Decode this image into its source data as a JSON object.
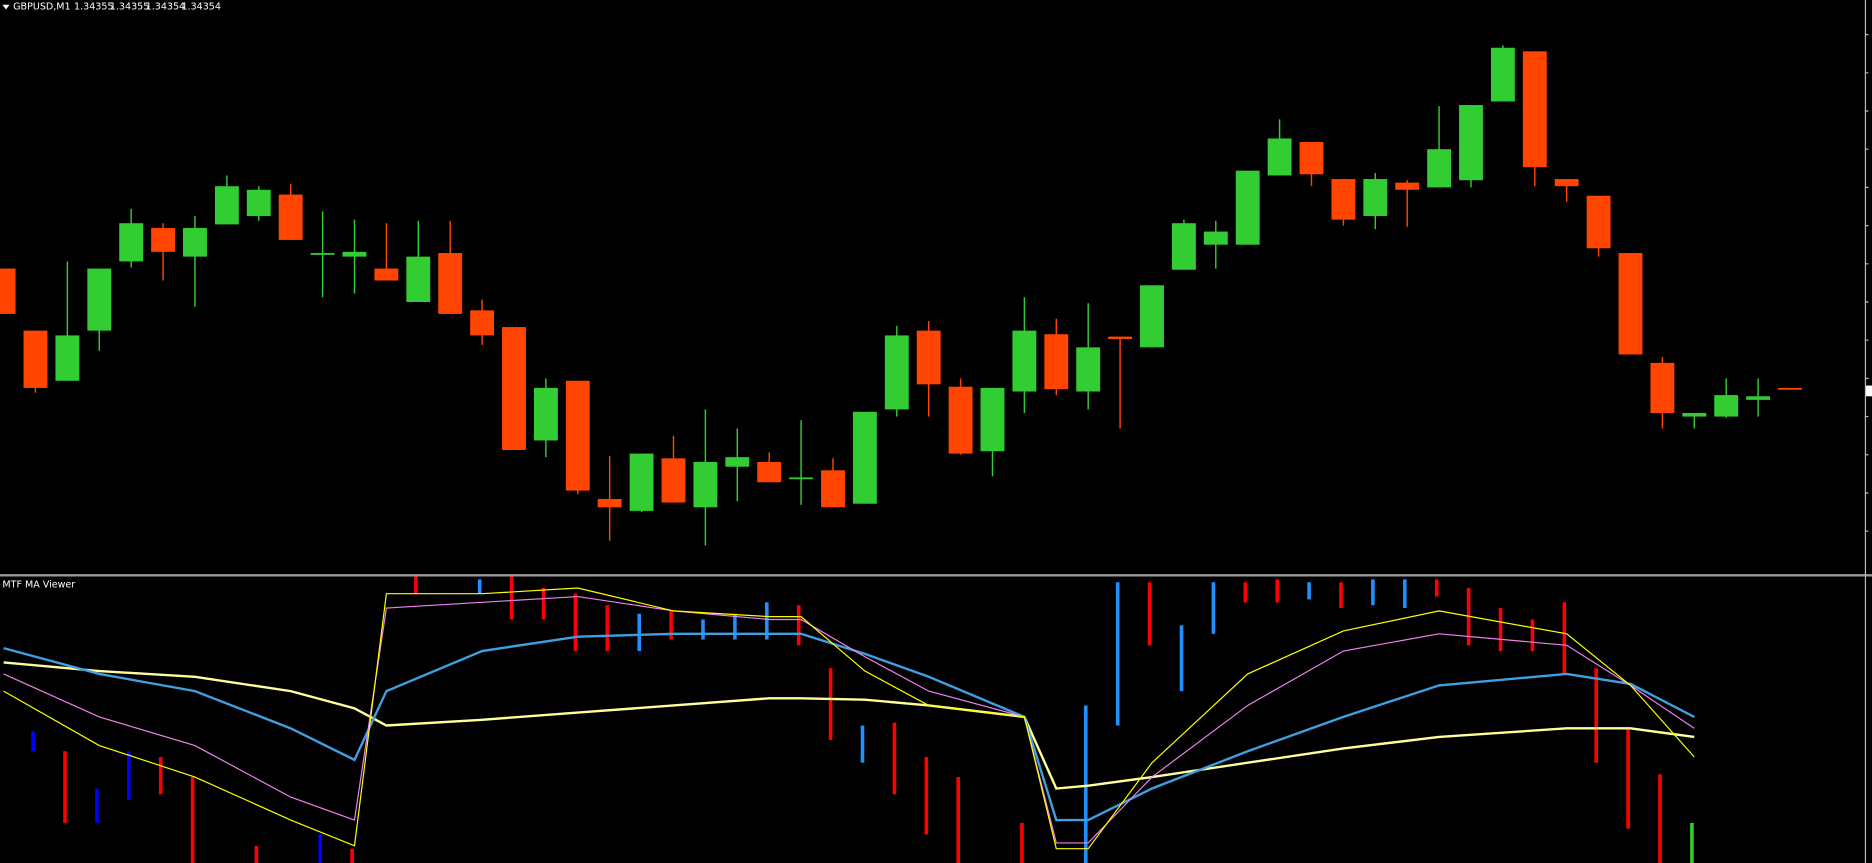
{
  "chart_data": [
    {
      "type": "candlestick",
      "title": "GBPUSD,M1",
      "ylim": [
        1.342,
        1.3468
      ],
      "up_color": "#32cd32",
      "down_color": "#ff4500",
      "open": [
        1.34455,
        1.34403,
        1.34361,
        1.34403,
        1.34461,
        1.34489,
        1.34465,
        1.34492,
        1.34499,
        1.34517,
        1.34468,
        1.34465,
        1.34455,
        1.34427,
        1.34468,
        1.3442,
        1.34406,
        1.34311,
        1.34361,
        1.34262,
        1.34252,
        1.34296,
        1.34255,
        1.34289,
        1.34293,
        1.3428,
        1.34286,
        1.34258,
        1.34337,
        1.34403,
        1.34356,
        1.34302,
        1.34352,
        1.344,
        1.34352,
        1.34398,
        1.34389,
        1.34454,
        1.34475,
        1.34475,
        1.34533,
        1.34561,
        1.3453,
        1.34499,
        1.34527,
        1.34523,
        1.34529,
        1.34595,
        1.34637,
        1.3453,
        1.34516,
        1.34468,
        1.34376,
        1.34331,
        1.34331,
        1.34345,
        1.34355
      ],
      "high": [
        1.34455,
        1.34403,
        1.34461,
        1.34455,
        1.34505,
        1.34493,
        1.34499,
        1.34533,
        1.34524,
        1.34526,
        1.34503,
        1.34496,
        1.34493,
        1.34495,
        1.34495,
        1.34429,
        1.34406,
        1.34363,
        1.34361,
        1.34298,
        1.343,
        1.34315,
        1.34337,
        1.34321,
        1.34301,
        1.34328,
        1.34296,
        1.34335,
        1.34407,
        1.34411,
        1.34363,
        1.34355,
        1.34431,
        1.34413,
        1.34426,
        1.34398,
        1.34441,
        1.34496,
        1.34495,
        1.34537,
        1.3458,
        1.34561,
        1.3453,
        1.34535,
        1.34529,
        1.34591,
        1.34592,
        1.34642,
        1.34637,
        1.3453,
        1.34516,
        1.34468,
        1.34381,
        1.34334,
        1.34363,
        1.34363,
        1.34355
      ],
      "low": [
        1.34417,
        1.34351,
        1.34361,
        1.34386,
        1.34456,
        1.34445,
        1.34423,
        1.34492,
        1.34495,
        1.34479,
        1.34431,
        1.34434,
        1.34445,
        1.34427,
        1.34417,
        1.34391,
        1.34303,
        1.34297,
        1.34266,
        1.34227,
        1.34251,
        1.34259,
        1.34223,
        1.3426,
        1.34276,
        1.34257,
        1.34255,
        1.34258,
        1.34331,
        1.34331,
        1.34299,
        1.34281,
        1.34334,
        1.34349,
        1.34337,
        1.34321,
        1.34389,
        1.34454,
        1.34455,
        1.34475,
        1.34533,
        1.34524,
        1.34491,
        1.34488,
        1.3449,
        1.34523,
        1.34523,
        1.34595,
        1.34524,
        1.34511,
        1.34465,
        1.34383,
        1.34321,
        1.34321,
        1.3433,
        1.34331,
        1.34354
      ],
      "close": [
        1.34417,
        1.34355,
        1.34399,
        1.34455,
        1.34493,
        1.34469,
        1.34489,
        1.34524,
        1.34521,
        1.34479,
        1.34468,
        1.34469,
        1.34445,
        1.34465,
        1.34417,
        1.34399,
        1.34303,
        1.34355,
        1.34269,
        1.34255,
        1.343,
        1.34259,
        1.34293,
        1.34297,
        1.34276,
        1.3428,
        1.34255,
        1.34335,
        1.34399,
        1.34358,
        1.343,
        1.34355,
        1.34403,
        1.34354,
        1.34389,
        1.34396,
        1.34441,
        1.34493,
        1.34486,
        1.34537,
        1.34564,
        1.34534,
        1.34496,
        1.3453,
        1.34521,
        1.34555,
        1.34592,
        1.3464,
        1.3454,
        1.34524,
        1.34472,
        1.34383,
        1.34334,
        1.34334,
        1.34349,
        1.34348,
        1.34354
      ]
    },
    {
      "type": "line",
      "title": "MTF MA Viewer",
      "ylim": [
        0,
        100
      ],
      "x": [
        0,
        3,
        6,
        9,
        11,
        12,
        15,
        18,
        21,
        24,
        25,
        27,
        29,
        32,
        33,
        34,
        36,
        39,
        42,
        45,
        49,
        51,
        53
      ],
      "series": [
        {
          "color": "#ffff99",
          "width": 2,
          "values": [
            70,
            67,
            65,
            60,
            54,
            48,
            50,
            52.5,
            55,
            57.5,
            57.5,
            57,
            55,
            51,
            26,
            27,
            30,
            35,
            40,
            44,
            47,
            47,
            44
          ]
        },
        {
          "color": "#3f9fe0",
          "width": 2,
          "values": [
            75,
            66,
            60,
            47,
            36,
            60,
            74,
            79,
            80,
            80,
            80,
            73,
            65,
            51,
            15,
            15,
            26,
            39,
            51,
            62,
            66,
            62.5,
            51
          ]
        },
        {
          "color": "#ee82ee",
          "width": 1,
          "values": [
            66,
            51,
            41,
            23,
            15,
            89,
            91,
            93,
            88,
            85,
            85,
            72,
            60,
            51,
            7,
            7,
            30,
            55,
            74,
            80,
            76,
            62,
            47
          ]
        },
        {
          "color": "#ffff00",
          "width": 1,
          "values": [
            60,
            41,
            30,
            15,
            6,
            94,
            94,
            96,
            88,
            86,
            86,
            67,
            55,
            51,
            5,
            5,
            35,
            66,
            81,
            88,
            80,
            62,
            37
          ]
        }
      ],
      "bars": {
        "x": [
          1,
          2,
          3,
          4,
          5,
          6,
          8,
          10,
          11,
          13,
          15,
          16,
          17,
          18,
          19,
          20,
          21,
          22,
          23,
          24,
          25,
          26,
          27,
          28,
          29,
          30,
          32,
          34,
          35,
          36,
          37,
          38,
          39,
          40,
          41,
          42,
          43,
          44,
          45,
          46,
          47,
          48,
          49,
          50,
          51,
          52,
          53
        ],
        "low": [
          39,
          14,
          14,
          22,
          24,
          0,
          0,
          0,
          0,
          94,
          94,
          85,
          85,
          74,
          74,
          74,
          78,
          78,
          78,
          78,
          76,
          43,
          35,
          24,
          10,
          0,
          0,
          0,
          48,
          76,
          60,
          80,
          91,
          91,
          92,
          89,
          90,
          89,
          93,
          76,
          74,
          74,
          66,
          35,
          12,
          0,
          0
        ],
        "high": [
          46,
          39,
          26,
          39,
          37,
          30,
          6,
          10,
          5,
          100,
          99,
          100,
          96,
          94,
          90,
          87,
          88,
          85,
          87,
          91,
          90,
          68,
          48,
          49,
          37,
          30,
          14,
          55,
          98,
          98,
          83,
          98,
          98,
          99,
          98,
          98,
          99,
          99,
          99,
          96,
          89,
          85,
          91,
          68,
          47,
          31,
          14
        ],
        "colors": [
          "#0000ff",
          "#ff0000",
          "#0000ff",
          "#0000ff",
          "#ff0000",
          "#ff0000",
          "#ff0000",
          "#0000ff",
          "#ff0000",
          "#ff0000",
          "#1e90ff",
          "#ff0000",
          "#ff0000",
          "#ff0000",
          "#ff0000",
          "#1e90ff",
          "#ff0000",
          "#1e90ff",
          "#1e90ff",
          "#1e90ff",
          "#ff0000",
          "#ff0000",
          "#1e90ff",
          "#ff0000",
          "#ff0000",
          "#ff0000",
          "#ff0000",
          "#1e90ff",
          "#1e90ff",
          "#ff0000",
          "#1e90ff",
          "#1e90ff",
          "#ff0000",
          "#ff0000",
          "#1e90ff",
          "#ff0000",
          "#1e90ff",
          "#1e90ff",
          "#ff0000",
          "#ff0000",
          "#ff0000",
          "#ff0000",
          "#ff0000",
          "#ff0000",
          "#ff0000",
          "#ff0000",
          "#32cd32"
        ]
      }
    }
  ]
}
